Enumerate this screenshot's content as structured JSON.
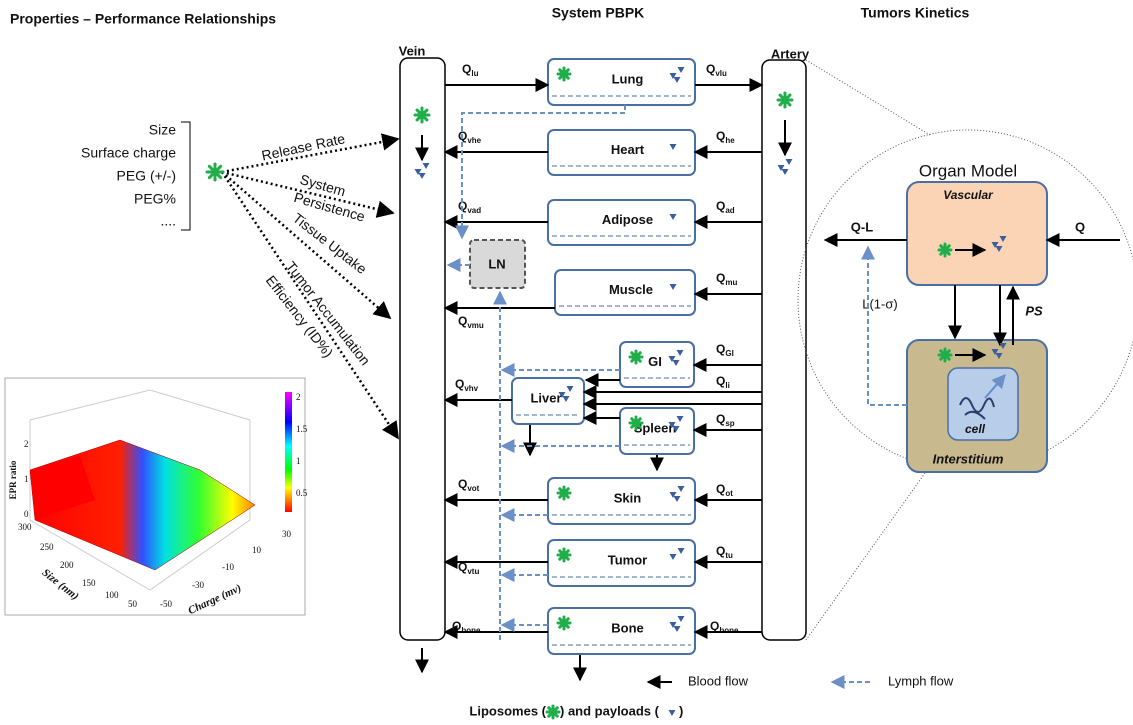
{
  "headers": {
    "left": "Properties – Performance Relationships",
    "center": "System PBPK",
    "right": "Tumors Kinetics"
  },
  "properties": [
    "Size",
    "Surface charge",
    "PEG (+/-)",
    "PEG%",
    "...."
  ],
  "relationships": [
    [
      "Release Rate"
    ],
    [
      "System",
      "Persistence"
    ],
    [
      "Tissue Uptake"
    ],
    [
      "Tumor Accumulation",
      "Efficiency (ID%)"
    ]
  ],
  "plot": {
    "z_label": "EPR ratio",
    "x_label": "Size (nm)",
    "y_label": "Charge (mv)",
    "z_ticks": [
      "2",
      "1",
      "0"
    ],
    "x_ticks": [
      "300",
      "250",
      "200",
      "150",
      "100",
      "50"
    ],
    "y_ticks": [
      "-50",
      "-30",
      "-10",
      "10",
      "30"
    ],
    "colorbar_ticks": [
      "2",
      "1.5",
      "1",
      "0.5"
    ]
  },
  "vessels": {
    "vein": "Vein",
    "artery": "Artery"
  },
  "organs": [
    "Lung",
    "Heart",
    "Adipose",
    "Muscle",
    "GI",
    "Liver",
    "Spleen",
    "Skin",
    "Tumor",
    "Bone"
  ],
  "lymph_node": "LN",
  "flows": [
    {
      "q": "Q",
      "sub": "lu"
    },
    {
      "q": "Q",
      "sub": "vlu"
    },
    {
      "q": "Q",
      "sub": "vhe"
    },
    {
      "q": "Q",
      "sub": "he"
    },
    {
      "q": "Q",
      "sub": "vad"
    },
    {
      "q": "Q",
      "sub": "ad"
    },
    {
      "q": "Q",
      "sub": "mu"
    },
    {
      "q": "Q",
      "sub": "vmu"
    },
    {
      "q": "Q",
      "sub": "GI"
    },
    {
      "q": "Q",
      "sub": "li"
    },
    {
      "q": "Q",
      "sub": "vhv"
    },
    {
      "q": "Q",
      "sub": "sp"
    },
    {
      "q": "Q",
      "sub": "vot"
    },
    {
      "q": "Q",
      "sub": "ot"
    },
    {
      "q": "Q",
      "sub": "vtu"
    },
    {
      "q": "Q",
      "sub": "tu"
    },
    {
      "q": "Q",
      "sub": "bone"
    },
    {
      "q": "Q",
      "sub": "bone"
    }
  ],
  "legend": {
    "blood": "Blood flow",
    "lymph": "Lymph flow"
  },
  "caption": {
    "part1": "Liposomes (",
    "part2": ") and payloads (",
    "part3": ")"
  },
  "organ_model": {
    "title": "Organ Model",
    "vascular": "Vascular",
    "interstitium": "Interstitium",
    "cell": "cell",
    "q_in": "Q",
    "q_out": "Q-L",
    "lymph": "L(1-σ)",
    "ps": "PS"
  }
}
